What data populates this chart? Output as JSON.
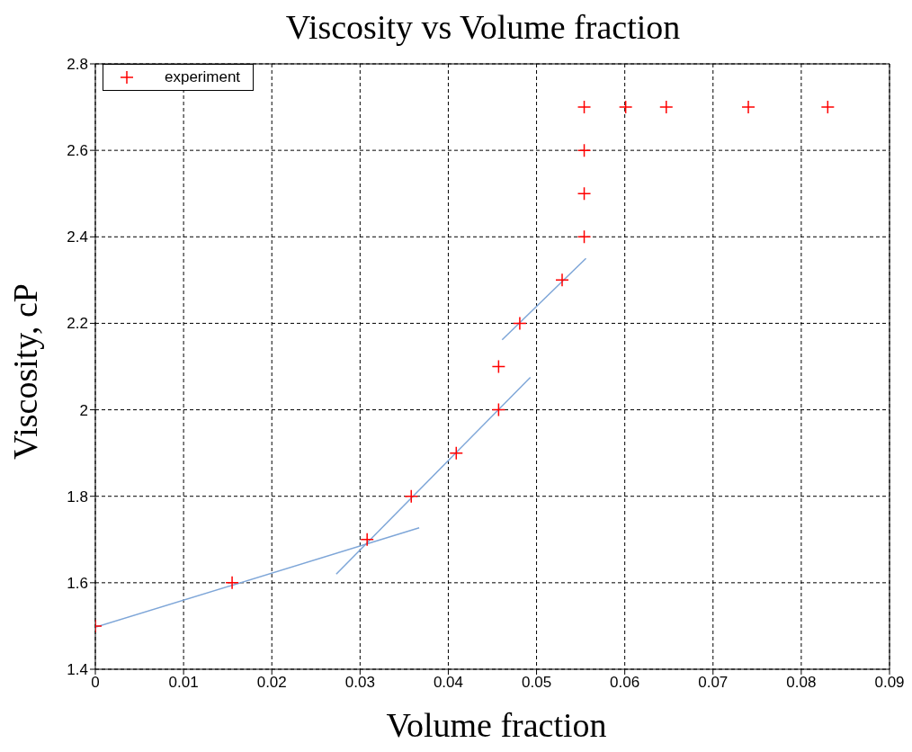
{
  "chart_data": {
    "type": "scatter",
    "title": "Viscosity vs Volume fraction",
    "xlabel": "Volume fraction",
    "ylabel": "Viscosity, cP",
    "xlim": [
      0,
      0.09
    ],
    "xticks": [
      0,
      0.01,
      0.02,
      0.03,
      0.04,
      0.05,
      0.06,
      0.07,
      0.08,
      0.09
    ],
    "ylim": [
      1.4,
      2.8
    ],
    "yticks": [
      1.4,
      1.6,
      1.8,
      2,
      2.2,
      2.4,
      2.6,
      2.8
    ],
    "grid": true,
    "legend": "top left",
    "series": [
      {
        "name": "experiment",
        "type": "scatter",
        "color": "#ff0000",
        "marker": "cross",
        "x": [
          0,
          0.0155,
          0.0308,
          0.0358,
          0.0409,
          0.0457,
          0.0457,
          0.0481,
          0.0529,
          0.0554,
          0.0554,
          0.0554,
          0.0554,
          0.0601,
          0.0647,
          0.074,
          0.083
        ],
        "values": [
          1.5,
          1.6,
          1.7,
          1.8,
          1.9,
          2.0,
          2.1,
          2.2,
          2.3,
          2.4,
          2.5,
          2.6,
          2.7,
          2.7,
          2.7,
          2.7,
          2.7
        ]
      },
      {
        "type": "line",
        "color": "#7ea6d8",
        "marker": "none",
        "x": [
          0,
          0.0367
        ],
        "values": [
          1.497,
          1.727
        ]
      },
      {
        "type": "line",
        "color": "#7ea6d8",
        "marker": "none",
        "x": [
          0.0273,
          0.0493
        ],
        "values": [
          1.62,
          2.075
        ]
      },
      {
        "type": "line",
        "color": "#7ea6d8",
        "marker": "none",
        "x": [
          0.0461,
          0.0556
        ],
        "values": [
          2.162,
          2.35
        ]
      }
    ]
  }
}
